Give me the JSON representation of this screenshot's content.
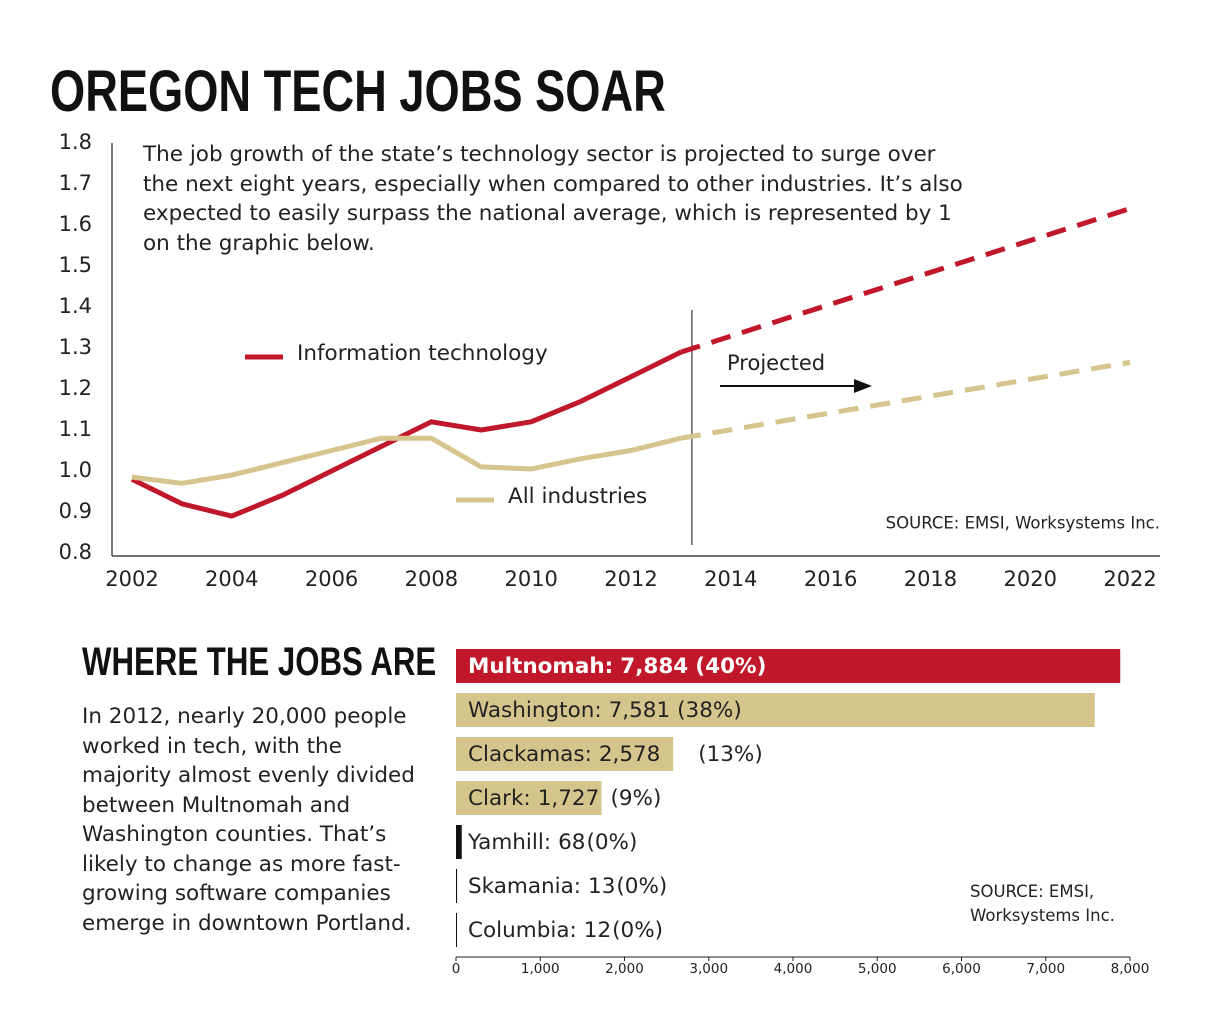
{
  "title": "OREGON TECH JOBS SOAR",
  "chart_data": [
    {
      "type": "line",
      "description": "The job growth of the state’s technology sector is projected to surge over the next eight years, especially when compared to other industries. It’s also expected to easily surpass the national average, which is represented by 1 on the graphic below.",
      "annotation": "Projected",
      "source": "SOURCE: EMSI, Worksystems Inc.",
      "x": [
        2002,
        2003,
        2004,
        2005,
        2006,
        2007,
        2008,
        2009,
        2010,
        2011,
        2012,
        2013,
        2022
      ],
      "projection_start": 2013,
      "series": [
        {
          "name": "Information technology",
          "color": "#c0172b",
          "values": [
            0.98,
            0.92,
            0.89,
            0.94,
            1.0,
            1.06,
            1.12,
            1.1,
            1.12,
            1.17,
            1.23,
            1.29,
            1.64
          ]
        },
        {
          "name": "All industries",
          "color": "#d5c48c",
          "values": [
            0.985,
            0.97,
            0.99,
            1.02,
            1.05,
            1.08,
            1.08,
            1.01,
            1.005,
            1.03,
            1.05,
            1.08,
            1.265
          ]
        }
      ],
      "xlim": [
        2001.6,
        2022.6
      ],
      "xticks": [
        2002,
        2004,
        2006,
        2008,
        2010,
        2012,
        2014,
        2016,
        2018,
        2020,
        2022
      ],
      "ylim": [
        0.8,
        1.8
      ],
      "yticks": [
        0.8,
        0.9,
        {
          "value": 1,
          "label": "1.0"
        },
        1.1,
        1.2,
        1.3,
        1.4,
        1.5,
        1.6,
        1.7,
        1.8
      ]
    },
    {
      "type": "hbar",
      "title": "WHERE THE JOBS ARE",
      "description": "In 2012, nearly 20,000 people worked in tech, with the majority almost evenly divided between Multnomah and Washington counties. That’s likely to change as more fast-growing software companies emerge in downtown Portland.",
      "source": "SOURCE: EMSI, Worksystems Inc.",
      "categories": [
        "Multnomah",
        "Washington",
        "Clackamas",
        "Clark",
        "Yamhill",
        "Skamania",
        "Columbia"
      ],
      "label_separator": ":",
      "values": [
        7884,
        7581,
        2578,
        1727,
        68,
        13,
        12
      ],
      "value_labels": [
        "7,884",
        "7,581",
        "2,578",
        "1,727",
        "68",
        "13",
        "12"
      ],
      "shares": [
        40,
        38,
        13,
        9,
        0,
        0,
        0
      ],
      "share_labels": [
        "(40%)",
        "(38%)",
        "(13%)",
        "(9%)",
        "(0%)",
        "(0%)",
        "(0%)"
      ],
      "colors": [
        "#c0172b",
        "#d5c48c",
        "#d5c48c",
        "#d5c48c",
        "#111111",
        "#111111",
        "#111111"
      ],
      "label_colors": [
        "#ffffff",
        "#222222",
        "#222222",
        "#222222",
        "#222222",
        "#222222",
        "#222222"
      ],
      "xlim": [
        0,
        8000
      ],
      "xticks": [
        0,
        {
          "value": 1000,
          "label": "1,000"
        },
        {
          "value": 2000,
          "label": "2,000"
        },
        {
          "value": 3000,
          "label": "3,000"
        },
        {
          "value": 4000,
          "label": "4,000"
        },
        {
          "value": 5000,
          "label": "5,000"
        },
        {
          "value": 6000,
          "label": "6,000"
        },
        {
          "value": 7000,
          "label": "7,000"
        },
        {
          "value": 8000,
          "label": "8,000"
        }
      ]
    }
  ]
}
